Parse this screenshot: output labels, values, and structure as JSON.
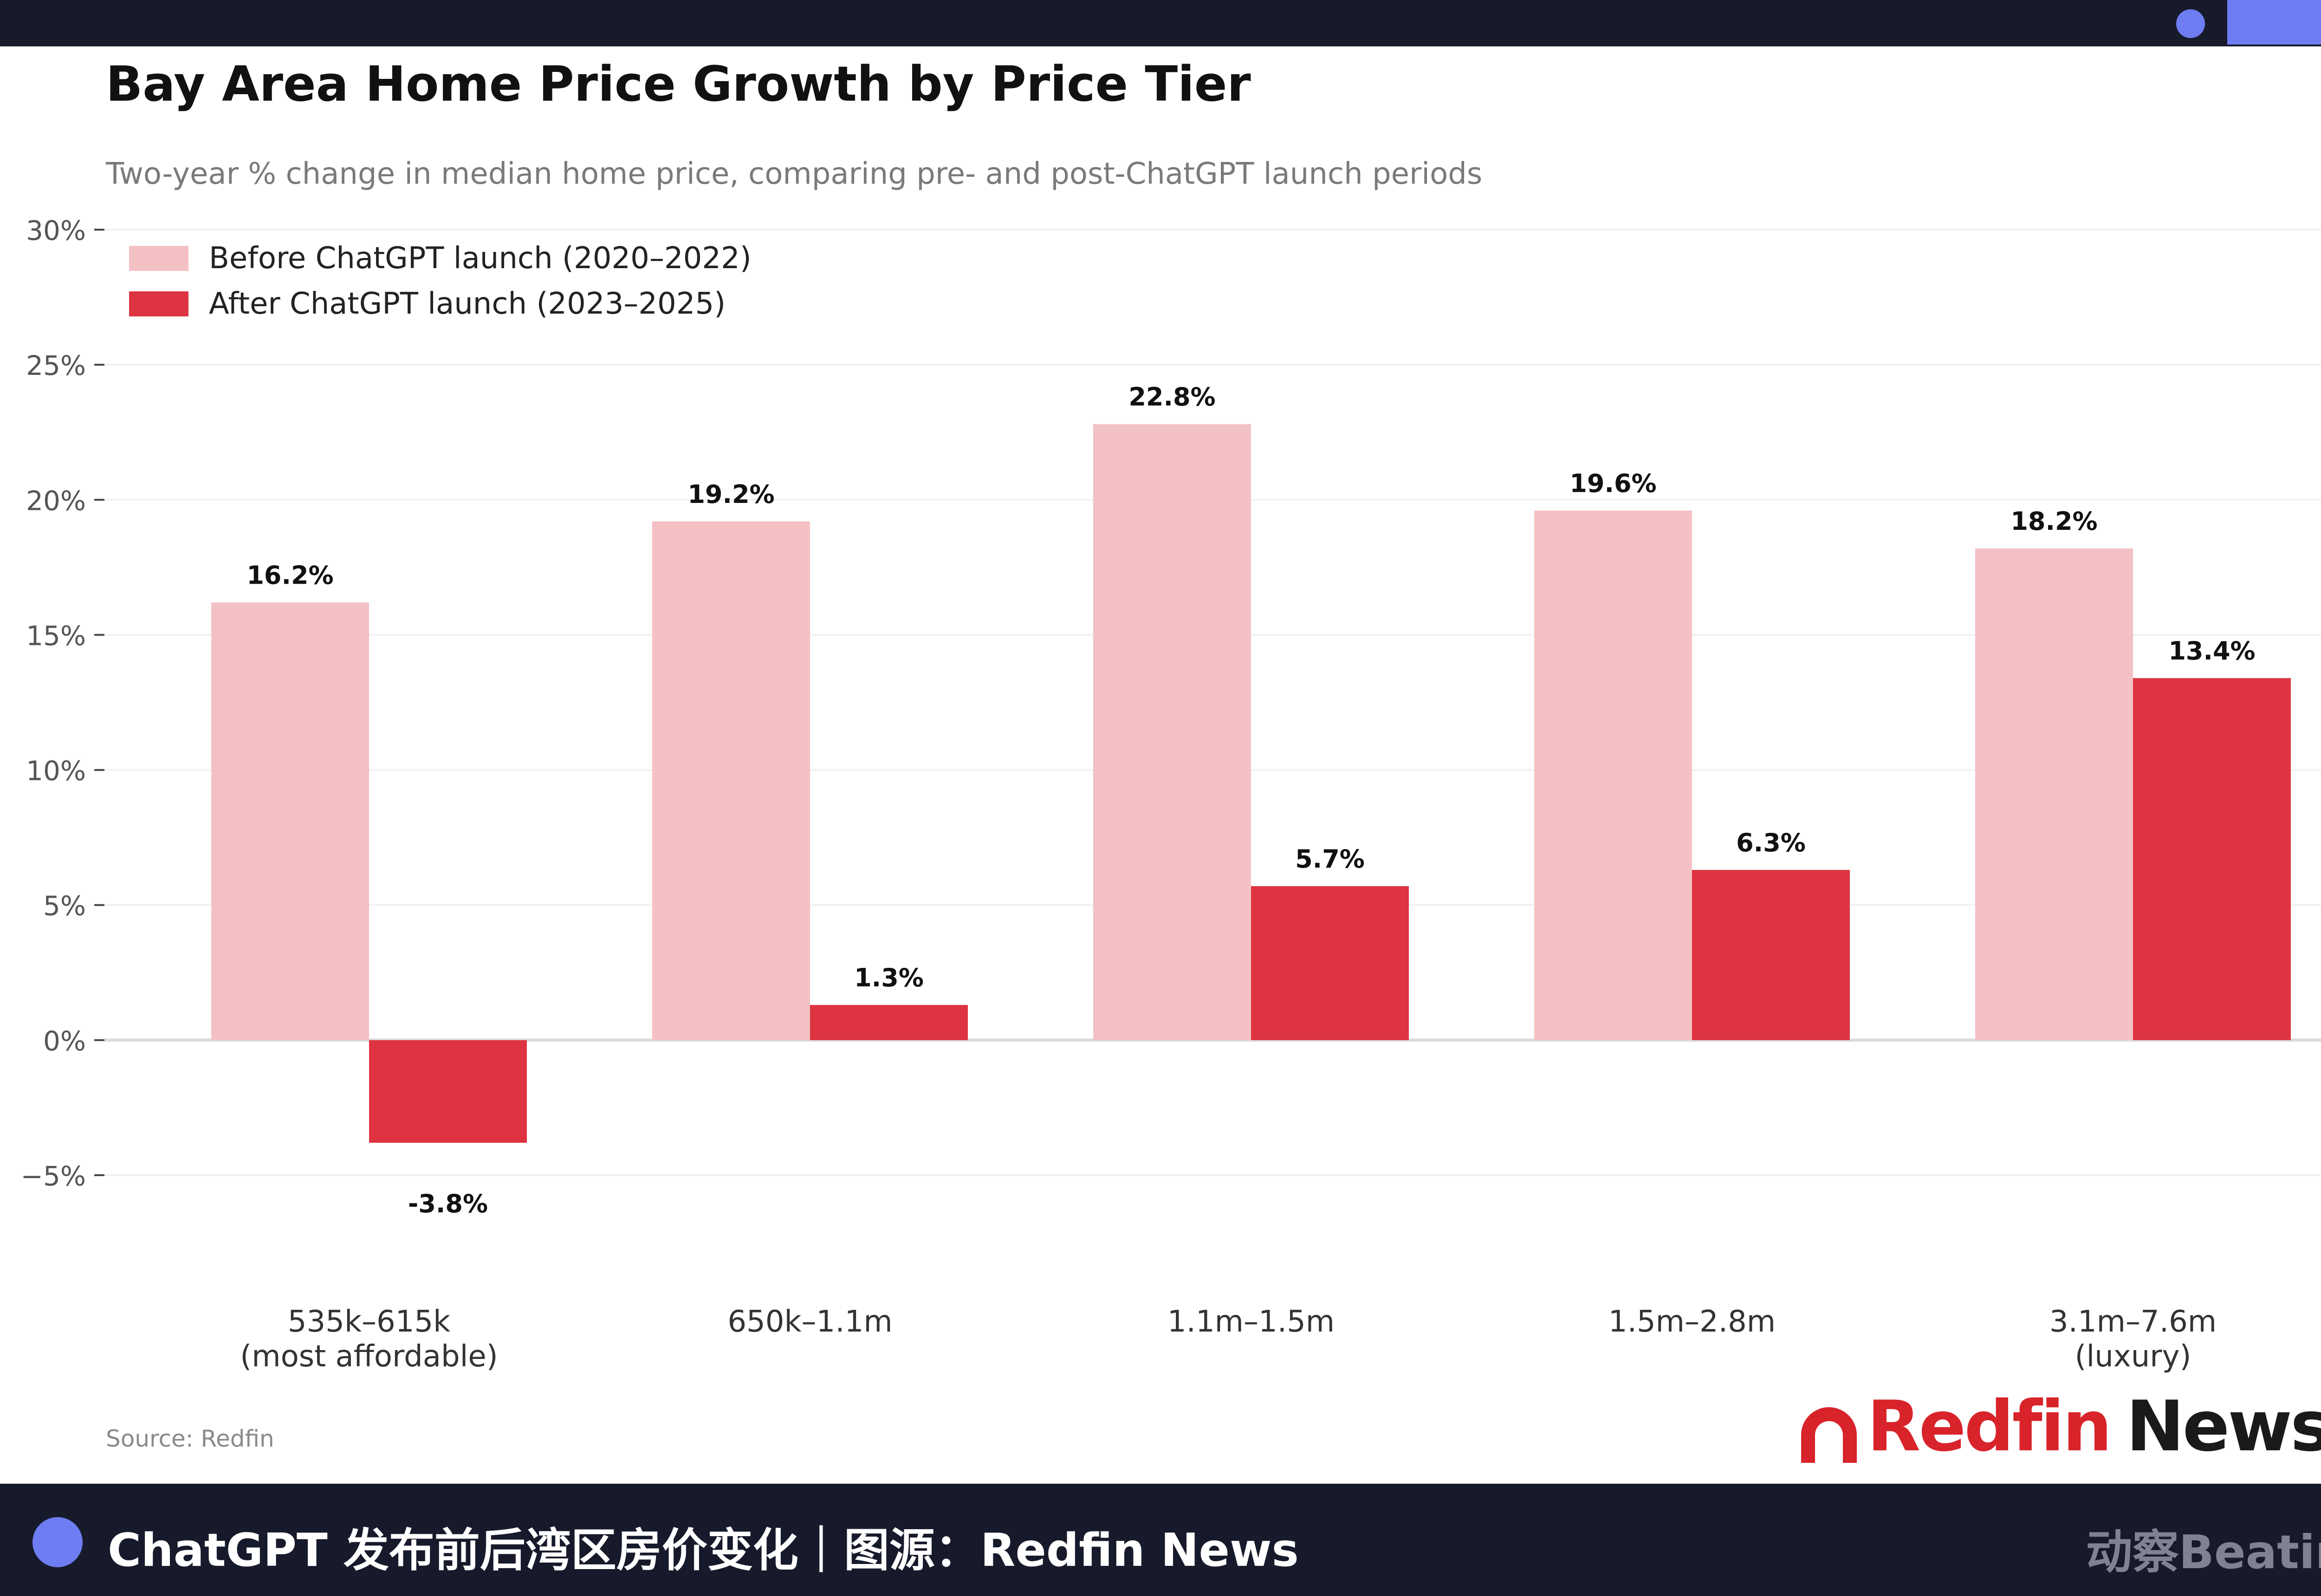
{
  "chart_data": {
    "type": "bar",
    "title": "Bay Area Home Price Growth by Price Tier",
    "subtitle": "Two-year % change in median home price, comparing pre- and post-ChatGPT launch periods",
    "categories": [
      [
        "535k–615k",
        "(most affordable)"
      ],
      [
        "650k–1.1m"
      ],
      [
        "1.1m–1.5m"
      ],
      [
        "1.5m–2.8m"
      ],
      [
        "3.1m–7.6m",
        "(luxury)"
      ]
    ],
    "series": [
      {
        "name": "Before ChatGPT launch (2020–2022)",
        "color": "#f3c1c4",
        "values": [
          16.2,
          19.2,
          22.8,
          19.6,
          18.2
        ],
        "labels": [
          "16.2%",
          "19.2%",
          "22.8%",
          "19.6%",
          "18.2%"
        ]
      },
      {
        "name": "After ChatGPT launch (2023–2025)",
        "color": "#de3341",
        "values": [
          -3.8,
          1.3,
          5.7,
          6.3,
          13.4
        ],
        "labels": [
          "-3.8%",
          "1.3%",
          "5.7%",
          "6.3%",
          "13.4%"
        ]
      }
    ],
    "ylim": [
      -5,
      30
    ],
    "yticks": [
      30,
      25,
      20,
      15,
      10,
      5,
      0,
      -5
    ],
    "ytick_labels": [
      "30%",
      "25%",
      "20%",
      "15%",
      "10%",
      "5%",
      "0%",
      "−5%"
    ],
    "xlabel": "",
    "ylabel": "",
    "grid": true,
    "legend_position": "top-left"
  },
  "source_note": "Source: Redfin",
  "brand": {
    "name_red": "Redfin",
    "name_dark": "News"
  },
  "caption": "ChatGPT 发布前后湾区房价变化｜图源：Redfin News",
  "watermark": "动察Beating",
  "colors": {
    "bar_bg": "#171a2b",
    "accent": "#6e7df2",
    "brand_red": "#d8232a"
  }
}
